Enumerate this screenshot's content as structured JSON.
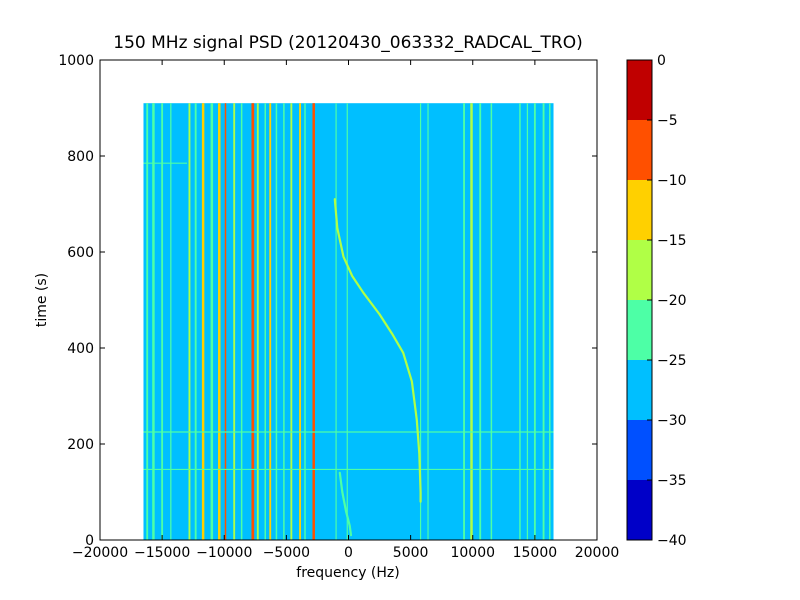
{
  "chart_data": {
    "type": "heatmap",
    "title": "150 MHz signal PSD (20120430_063332_RADCAL_TRO)",
    "xlabel": "frequency (Hz)",
    "ylabel": "time (s)",
    "xlim": [
      -20000,
      20000
    ],
    "ylim": [
      0,
      1000
    ],
    "x_ticks": [
      -20000,
      -15000,
      -10000,
      -5000,
      0,
      5000,
      10000,
      15000,
      20000
    ],
    "y_ticks": [
      0,
      200,
      400,
      600,
      800,
      1000
    ],
    "data_extent": {
      "x": [
        -16500,
        16500
      ],
      "y": [
        0,
        910
      ]
    },
    "background_level_range": [
      -30,
      -25
    ],
    "colorbar": {
      "min": -40,
      "max": 0,
      "ticks": [
        0,
        -5,
        -10,
        -15,
        -20,
        -25,
        -30,
        -35,
        -40
      ],
      "levels": [
        {
          "range": [
            -40,
            -35
          ],
          "color": "#0000c8"
        },
        {
          "range": [
            -35,
            -30
          ],
          "color": "#0050ff"
        },
        {
          "range": [
            -30,
            -25
          ],
          "color": "#00bfff"
        },
        {
          "range": [
            -25,
            -20
          ],
          "color": "#4dffa6"
        },
        {
          "range": [
            -20,
            -15
          ],
          "color": "#b0ff46"
        },
        {
          "range": [
            -15,
            -10
          ],
          "color": "#ffd000"
        },
        {
          "range": [
            -10,
            -5
          ],
          "color": "#ff5000"
        },
        {
          "range": [
            -5,
            0
          ],
          "color": "#c00000"
        }
      ]
    },
    "vertical_lines": [
      {
        "x": -16200,
        "level": -22,
        "width_hz": 150
      },
      {
        "x": -15700,
        "level": -22,
        "width_hz": 200
      },
      {
        "x": -15000,
        "level": -22,
        "width_hz": 150
      },
      {
        "x": -14300,
        "level": -22,
        "width_hz": 100
      },
      {
        "x": -12800,
        "level": -18,
        "width_hz": 150
      },
      {
        "x": -12300,
        "level": -22,
        "width_hz": 150
      },
      {
        "x": -11700,
        "level": -13,
        "width_hz": 200
      },
      {
        "x": -11000,
        "level": -22,
        "width_hz": 200
      },
      {
        "x": -10400,
        "level": -13,
        "width_hz": 200
      },
      {
        "x": -9900,
        "level": -7,
        "width_hz": 120
      },
      {
        "x": -9200,
        "level": -18,
        "width_hz": 150
      },
      {
        "x": -8600,
        "level": -22,
        "width_hz": 120
      },
      {
        "x": -7700,
        "level": -7,
        "width_hz": 220
      },
      {
        "x": -7300,
        "level": -18,
        "width_hz": 150
      },
      {
        "x": -6700,
        "level": -22,
        "width_hz": 120
      },
      {
        "x": -6300,
        "level": -13,
        "width_hz": 150
      },
      {
        "x": -5800,
        "level": -22,
        "width_hz": 120
      },
      {
        "x": -5200,
        "level": -22,
        "width_hz": 120
      },
      {
        "x": -4600,
        "level": -18,
        "width_hz": 150
      },
      {
        "x": -3900,
        "level": -13,
        "width_hz": 150
      },
      {
        "x": -3500,
        "level": -22,
        "width_hz": 120
      },
      {
        "x": -2800,
        "level": -7,
        "width_hz": 200
      },
      {
        "x": -1000,
        "level": -22,
        "width_hz": 80
      },
      {
        "x": -100,
        "level": -22,
        "width_hz": 80
      },
      {
        "x": 5800,
        "level": -22,
        "width_hz": 80
      },
      {
        "x": 6400,
        "level": -22,
        "width_hz": 80
      },
      {
        "x": 9300,
        "level": -22,
        "width_hz": 150
      },
      {
        "x": 9900,
        "level": -18,
        "width_hz": 200
      },
      {
        "x": 10600,
        "level": -22,
        "width_hz": 150
      },
      {
        "x": 11500,
        "level": -22,
        "width_hz": 120
      },
      {
        "x": 13800,
        "level": -22,
        "width_hz": 120
      },
      {
        "x": 14400,
        "level": -22,
        "width_hz": 100
      },
      {
        "x": 15000,
        "level": -22,
        "width_hz": 150
      },
      {
        "x": 15700,
        "level": -22,
        "width_hz": 150
      },
      {
        "x": 16200,
        "level": -22,
        "width_hz": 120
      }
    ],
    "horizontal_lines": [
      {
        "y": 225,
        "level": -22,
        "x": [
          -16500,
          16500
        ]
      },
      {
        "y": 147,
        "level": -22,
        "x": [
          -16500,
          16500
        ]
      },
      {
        "y": 785,
        "level": -22,
        "x": [
          -16500,
          -13000
        ]
      }
    ],
    "curves": [
      {
        "name": "main drift",
        "level": -18,
        "points": [
          [
            -1100,
            710
          ],
          [
            -900,
            650
          ],
          [
            -400,
            590
          ],
          [
            300,
            550
          ],
          [
            1200,
            515
          ],
          [
            2500,
            470
          ],
          [
            3500,
            430
          ],
          [
            4400,
            390
          ],
          [
            5100,
            330
          ],
          [
            5500,
            250
          ],
          [
            5700,
            180
          ],
          [
            5800,
            100
          ],
          [
            5800,
            80
          ]
        ]
      },
      {
        "name": "low drift",
        "level": -22,
        "points": [
          [
            -700,
            140
          ],
          [
            -500,
            100
          ],
          [
            -200,
            60
          ],
          [
            100,
            30
          ],
          [
            200,
            10
          ]
        ]
      }
    ]
  }
}
